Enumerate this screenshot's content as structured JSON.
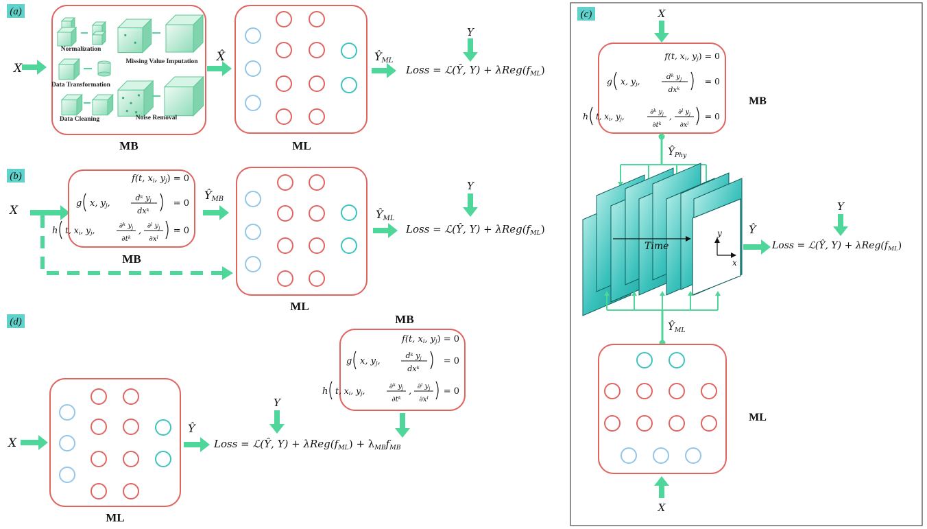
{
  "panels": {
    "a": {
      "tag": "(a)",
      "input": "X",
      "mb_label": "MB",
      "ml_label": "ML",
      "xhat": "X̂",
      "yhat_ml": "Ŷ",
      "yhat_ml_sub": "ML",
      "y": "Y",
      "loss": "Loss = ℒ(Ŷ, Y) + λReg(f",
      "loss_sub": "ML",
      "loss_end": ")",
      "preprocessing": [
        "Normalization",
        "Missing Value Imputation",
        "Data Transformation",
        "Data Cleaning",
        "Noise Removal"
      ]
    },
    "b": {
      "tag": "(b)",
      "input": "X",
      "mb_label": "MB",
      "ml_label": "ML",
      "yhat_mb": "Ŷ",
      "yhat_mb_sub": "MB",
      "yhat_ml": "Ŷ",
      "yhat_ml_sub": "ML",
      "y": "Y",
      "loss": "Loss = ℒ(Ŷ, Y) + λReg(f",
      "loss_sub": "ML",
      "loss_end": ")"
    },
    "c": {
      "tag": "(c)",
      "input_top": "X",
      "input_bottom": "X",
      "mb_label": "MB",
      "ml_label": "ML",
      "yhat_phy": "Ŷ",
      "yhat_phy_sub": "Phy",
      "yhat_ml": "Ŷ",
      "yhat_ml_sub": "ML",
      "yhat": "Ŷ",
      "y": "Y",
      "time": "Time",
      "axis_y": "y",
      "axis_x": "x",
      "loss": "Loss = ℒ(Ŷ, Y) + λReg(f",
      "loss_sub": "ML",
      "loss_end": ")"
    },
    "d": {
      "tag": "(d)",
      "input": "X",
      "mb_label": "MB",
      "ml_label": "ML",
      "yhat": "Ŷ",
      "y": "Y",
      "loss": "Loss = ℒ(Ŷ, Y) + λReg(f",
      "loss_sub1": "ML",
      "loss_mid": ") + λ",
      "loss_sub2": "MB",
      "loss_f": "f",
      "loss_sub3": "MB"
    }
  },
  "equations": {
    "f": "f(t, x",
    "f_i": "i",
    "f_mid": ", y",
    "f_j": "j",
    "f_end": ") = 0",
    "g_pre": "g",
    "g_args": "x, y",
    "g_j": "j",
    "g_comma": ",",
    "g_num": "d",
    "g_num_k": "k",
    "g_num_y": " y",
    "g_num_j": "j",
    "g_den": "dx",
    "g_den_k": "k",
    "g_end": "= 0",
    "h_pre": "h",
    "h_args": "t, x",
    "h_i": "i",
    "h_args2": ", y",
    "h_j": "j",
    "h_comma": ",",
    "h_n1": "∂",
    "h_n1_k": "k",
    "h_n1_y": " y",
    "h_n1_j": "j",
    "h_d1": "∂t",
    "h_d1_k": "k",
    "h_n2": "∂",
    "h_n2_l": "l",
    "h_n2_y": " y",
    "h_n2_j": "j",
    "h_d2": "∂x",
    "h_d2_i": "i",
    "h_d2_l": "l",
    "h_end": "= 0"
  },
  "colors": {
    "box_border": "#e0645f",
    "arrow": "#4fd69a",
    "node_in": "#93c6e8",
    "node_hidden": "#e0645f",
    "node_out": "#3cc3c0",
    "edge": "#4fd69a",
    "tag_bg": "#5fd3cb",
    "slab": "#3cc3c0"
  }
}
